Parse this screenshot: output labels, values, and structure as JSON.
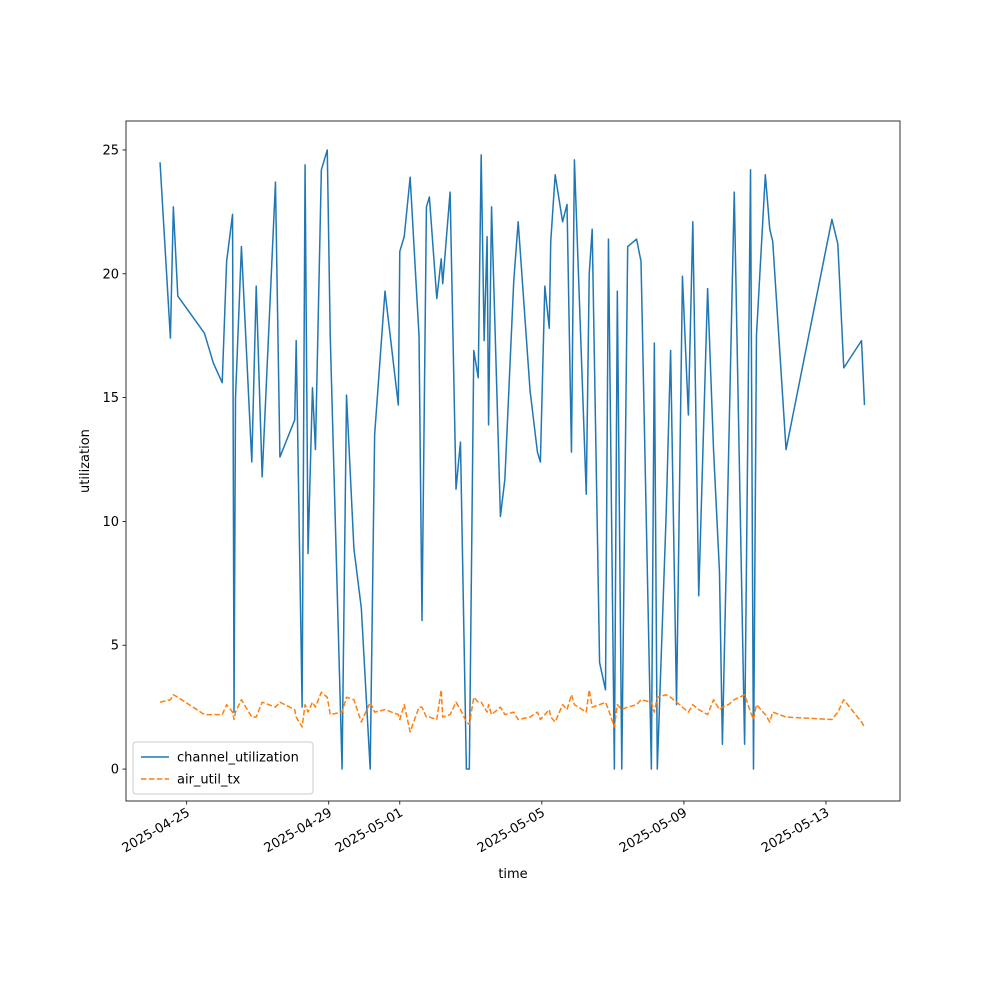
{
  "chart_data": {
    "type": "line",
    "x_label": "time",
    "y_label": "utilization",
    "x": [
      "2025-04-24T06:00",
      "2025-04-24T13:00",
      "2025-04-24T15:00",
      "2025-04-24T18:00",
      "2025-04-25T12:00",
      "2025-04-25T18:00",
      "2025-04-26T00:00",
      "2025-04-26T03:00",
      "2025-04-26T07:00",
      "2025-04-26T08:00",
      "2025-04-26T09:00",
      "2025-04-26T13:00",
      "2025-04-26T20:00",
      "2025-04-26T23:00",
      "2025-04-27T03:00",
      "2025-04-27T12:00",
      "2025-04-27T15:00",
      "2025-04-28T01:00",
      "2025-04-28T02:00",
      "2025-04-28T06:00",
      "2025-04-28T08:00",
      "2025-04-28T10:00",
      "2025-04-28T13:00",
      "2025-04-28T15:00",
      "2025-04-28T19:00",
      "2025-04-28T23:00",
      "2025-04-29T01:00",
      "2025-04-29T09:00",
      "2025-04-29T12:00",
      "2025-04-29T17:00",
      "2025-04-29T22:00",
      "2025-04-30T04:00",
      "2025-04-30T07:00",
      "2025-04-30T14:00",
      "2025-04-30T23:00",
      "2025-05-01T00:00",
      "2025-05-01T03:00",
      "2025-05-01T07:00",
      "2025-05-01T13:00",
      "2025-05-01T15:00",
      "2025-05-01T18:00",
      "2025-05-01T20:00",
      "2025-05-02T01:00",
      "2025-05-02T04:00",
      "2025-05-02T05:00",
      "2025-05-02T10:00",
      "2025-05-02T14:00",
      "2025-05-02T17:00",
      "2025-05-02T21:00",
      "2025-05-02T23:00",
      "2025-05-03T02:00",
      "2025-05-03T05:00",
      "2025-05-03T07:00",
      "2025-05-03T09:00",
      "2025-05-03T11:00",
      "2025-05-03T12:00",
      "2025-05-03T14:00",
      "2025-05-03T20:00",
      "2025-05-03T23:00",
      "2025-05-04T05:00",
      "2025-05-04T08:00",
      "2025-05-04T16:00",
      "2025-05-04T21:00",
      "2025-05-04T23:00",
      "2025-05-05T02:00",
      "2025-05-05T05:00",
      "2025-05-05T06:00",
      "2025-05-05T09:00",
      "2025-05-05T14:00",
      "2025-05-05T17:00",
      "2025-05-05T20:00",
      "2025-05-05T22:00",
      "2025-05-06T06:00",
      "2025-05-06T08:00",
      "2025-05-06T10:00",
      "2025-05-06T15:00",
      "2025-05-06T19:00",
      "2025-05-06T21:00",
      "2025-05-07T01:00",
      "2025-05-07T03:00",
      "2025-05-07T06:00",
      "2025-05-07T10:00",
      "2025-05-07T16:00",
      "2025-05-07T19:00",
      "2025-05-08T02:00",
      "2025-05-08T04:00",
      "2025-05-08T06:00",
      "2025-05-08T12:00",
      "2025-05-08T15:00",
      "2025-05-08T19:00",
      "2025-05-08T23:00",
      "2025-05-09T03:00",
      "2025-05-09T06:00",
      "2025-05-09T10:00",
      "2025-05-09T16:00",
      "2025-05-09T20:00",
      "2025-05-10T00:00",
      "2025-05-10T02:00",
      "2025-05-10T06:00",
      "2025-05-10T10:00",
      "2025-05-10T17:00",
      "2025-05-10T21:00",
      "2025-05-10T23:00",
      "2025-05-11T01:00",
      "2025-05-11T07:00",
      "2025-05-11T10:00",
      "2025-05-11T12:00",
      "2025-05-11T21:00",
      "2025-05-13T04:00",
      "2025-05-13T08:00",
      "2025-05-13T12:00",
      "2025-05-14T00:00",
      "2025-05-14T02:00"
    ],
    "series": [
      {
        "name": "channel_utilization",
        "color": "#1f77b4",
        "linestyle": "solid",
        "values": [
          24.5,
          17.4,
          22.7,
          19.1,
          17.6,
          16.4,
          15.6,
          20.5,
          22.4,
          2.3,
          15,
          21.1,
          12.4,
          19.5,
          11.8,
          23.7,
          12.6,
          14.1,
          17.3,
          2.5,
          24.4,
          8.7,
          15.4,
          12.9,
          24.2,
          25,
          17.5,
          0,
          15.1,
          8.9,
          6.5,
          0,
          13.5,
          19.3,
          14.7,
          20.9,
          21.5,
          23.9,
          17.5,
          6,
          22.7,
          23.1,
          19,
          20.6,
          19.6,
          23.3,
          11.3,
          13.2,
          0,
          0,
          16.9,
          15.8,
          24.8,
          17.3,
          21.5,
          13.9,
          22.7,
          10.2,
          11.7,
          19.7,
          22.1,
          15.3,
          12.8,
          12.4,
          19.5,
          17.8,
          21.3,
          24,
          22.1,
          22.8,
          12.8,
          24.6,
          11.1,
          20,
          21.8,
          4.3,
          3.2,
          21.4,
          0,
          19.3,
          0,
          21.1,
          21.4,
          20.5,
          0,
          17.2,
          0,
          10.3,
          16.9,
          2.6,
          19.9,
          14.3,
          22.1,
          7,
          19.4,
          12.9,
          8,
          1,
          12.2,
          23.3,
          1,
          24.2,
          0,
          17.5,
          24,
          21.8,
          21.3,
          12.9,
          22.2,
          21.2,
          16.2,
          17.3,
          14.7
        ]
      },
      {
        "name": "air_util_tx",
        "color": "#ff7f0e",
        "linestyle": "dashed",
        "values": [
          2.7,
          2.8,
          3.0,
          2.9,
          2.2,
          2.2,
          2.2,
          2.6,
          2.3,
          2.0,
          2.3,
          2.8,
          2.1,
          2.1,
          2.7,
          2.5,
          2.7,
          2.4,
          2.1,
          1.7,
          2.6,
          2.3,
          2.7,
          2.5,
          3.1,
          2.9,
          2.2,
          2.3,
          2.9,
          2.8,
          1.9,
          2.7,
          2.3,
          2.4,
          2.2,
          2.0,
          2.6,
          1.5,
          2.5,
          2.5,
          2.1,
          2.1,
          2.0,
          3.2,
          2.1,
          2.2,
          2.7,
          2.4,
          1.9,
          1.8,
          2.9,
          2.7,
          2.7,
          2.5,
          2.3,
          2.6,
          2.2,
          2.5,
          2.2,
          2.3,
          2.0,
          2.1,
          2.3,
          2.0,
          2.2,
          2.4,
          2.1,
          1.9,
          2.6,
          2.4,
          3.0,
          2.6,
          2.3,
          3.2,
          2.5,
          2.6,
          2.7,
          2.4,
          1.7,
          2.6,
          2.4,
          2.5,
          2.6,
          2.8,
          2.7,
          2.3,
          2.9,
          3.0,
          2.9,
          2.7,
          2.5,
          2.3,
          2.6,
          2.4,
          2.2,
          2.8,
          2.4,
          2.5,
          2.6,
          2.8,
          3.0,
          2.3,
          2.0,
          2.6,
          2.2,
          1.9,
          2.3,
          2.1,
          2.0,
          2.3,
          2.8,
          1.9,
          1.7
        ]
      }
    ],
    "xlim": [
      "2025-04-23T07:00",
      "2025-05-15T02:00"
    ],
    "xticks": [
      "2025-04-25",
      "2025-04-29",
      "2025-05-01",
      "2025-05-05",
      "2025-05-09",
      "2025-05-13"
    ],
    "ylim": [
      -1.29,
      26.17
    ],
    "yticks": [
      0,
      5,
      10,
      15,
      20,
      25
    ],
    "grid": false,
    "legend": "lower left"
  }
}
